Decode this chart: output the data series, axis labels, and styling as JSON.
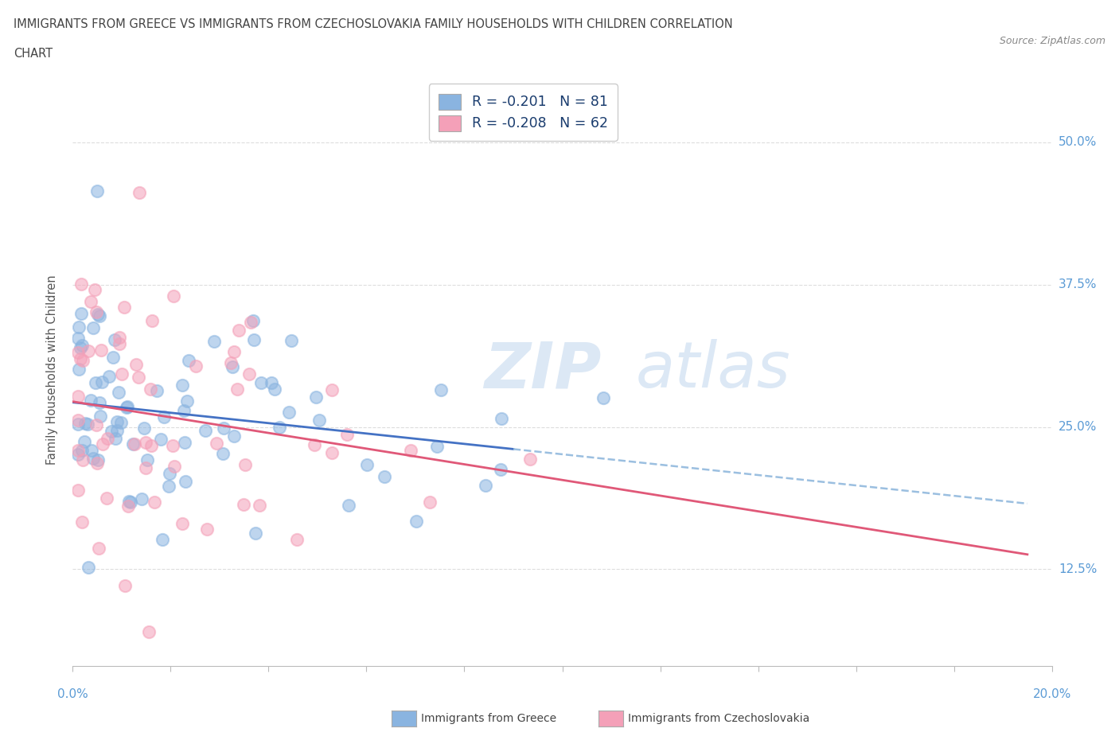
{
  "title_line1": "IMMIGRANTS FROM GREECE VS IMMIGRANTS FROM CZECHOSLOVAKIA FAMILY HOUSEHOLDS WITH CHILDREN CORRELATION",
  "title_line2": "CHART",
  "source": "Source: ZipAtlas.com",
  "ylabel": "Family Households with Children",
  "ytick_labels": [
    "12.5%",
    "25.0%",
    "37.5%",
    "50.0%"
  ],
  "ytick_values": [
    0.125,
    0.25,
    0.375,
    0.5
  ],
  "xlim": [
    0.0,
    0.2
  ],
  "ylim": [
    0.04,
    0.56
  ],
  "color_greece": "#8ab4e0",
  "color_czech": "#f4a0b8",
  "legend_R_greece": "R = -0.201",
  "legend_N_greece": "N = 81",
  "legend_R_czech": "R = -0.208",
  "legend_N_czech": "N = 62",
  "line_blue": "#4472c4",
  "line_pink": "#e05878",
  "line_dash": "#9bbfe0",
  "watermark_color": "#dce8f5",
  "background_color": "#ffffff",
  "grid_color": "#dddddd",
  "axis_color": "#5b9bd5",
  "seed_greece": 42,
  "seed_czech": 99,
  "n_greece": 81,
  "n_czech": 62
}
